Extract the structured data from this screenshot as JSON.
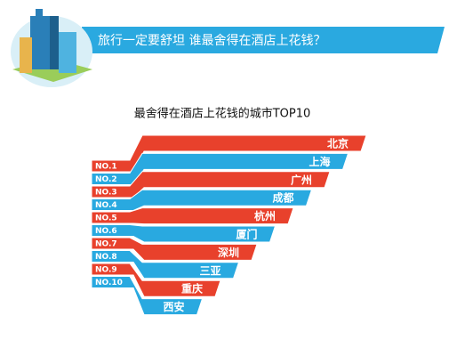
{
  "header": {
    "title": "旅行一定要舒坦 谁最舍得在酒店上花钱？"
  },
  "ranking": {
    "title": "最舍得在酒店上花钱的城市TOP10",
    "items": [
      {
        "rank": "NO.1",
        "city": "北京"
      },
      {
        "rank": "NO.2",
        "city": "上海"
      },
      {
        "rank": "NO.3",
        "city": "广州"
      },
      {
        "rank": "NO.4",
        "city": "成都"
      },
      {
        "rank": "NO.5",
        "city": "杭州"
      },
      {
        "rank": "NO.6",
        "city": "厦门"
      },
      {
        "rank": "NO.7",
        "city": "深圳"
      },
      {
        "rank": "NO.8",
        "city": "三亚"
      },
      {
        "rank": "NO.9",
        "city": "重庆"
      },
      {
        "rank": "NO.10",
        "city": "西安"
      }
    ]
  }
}
